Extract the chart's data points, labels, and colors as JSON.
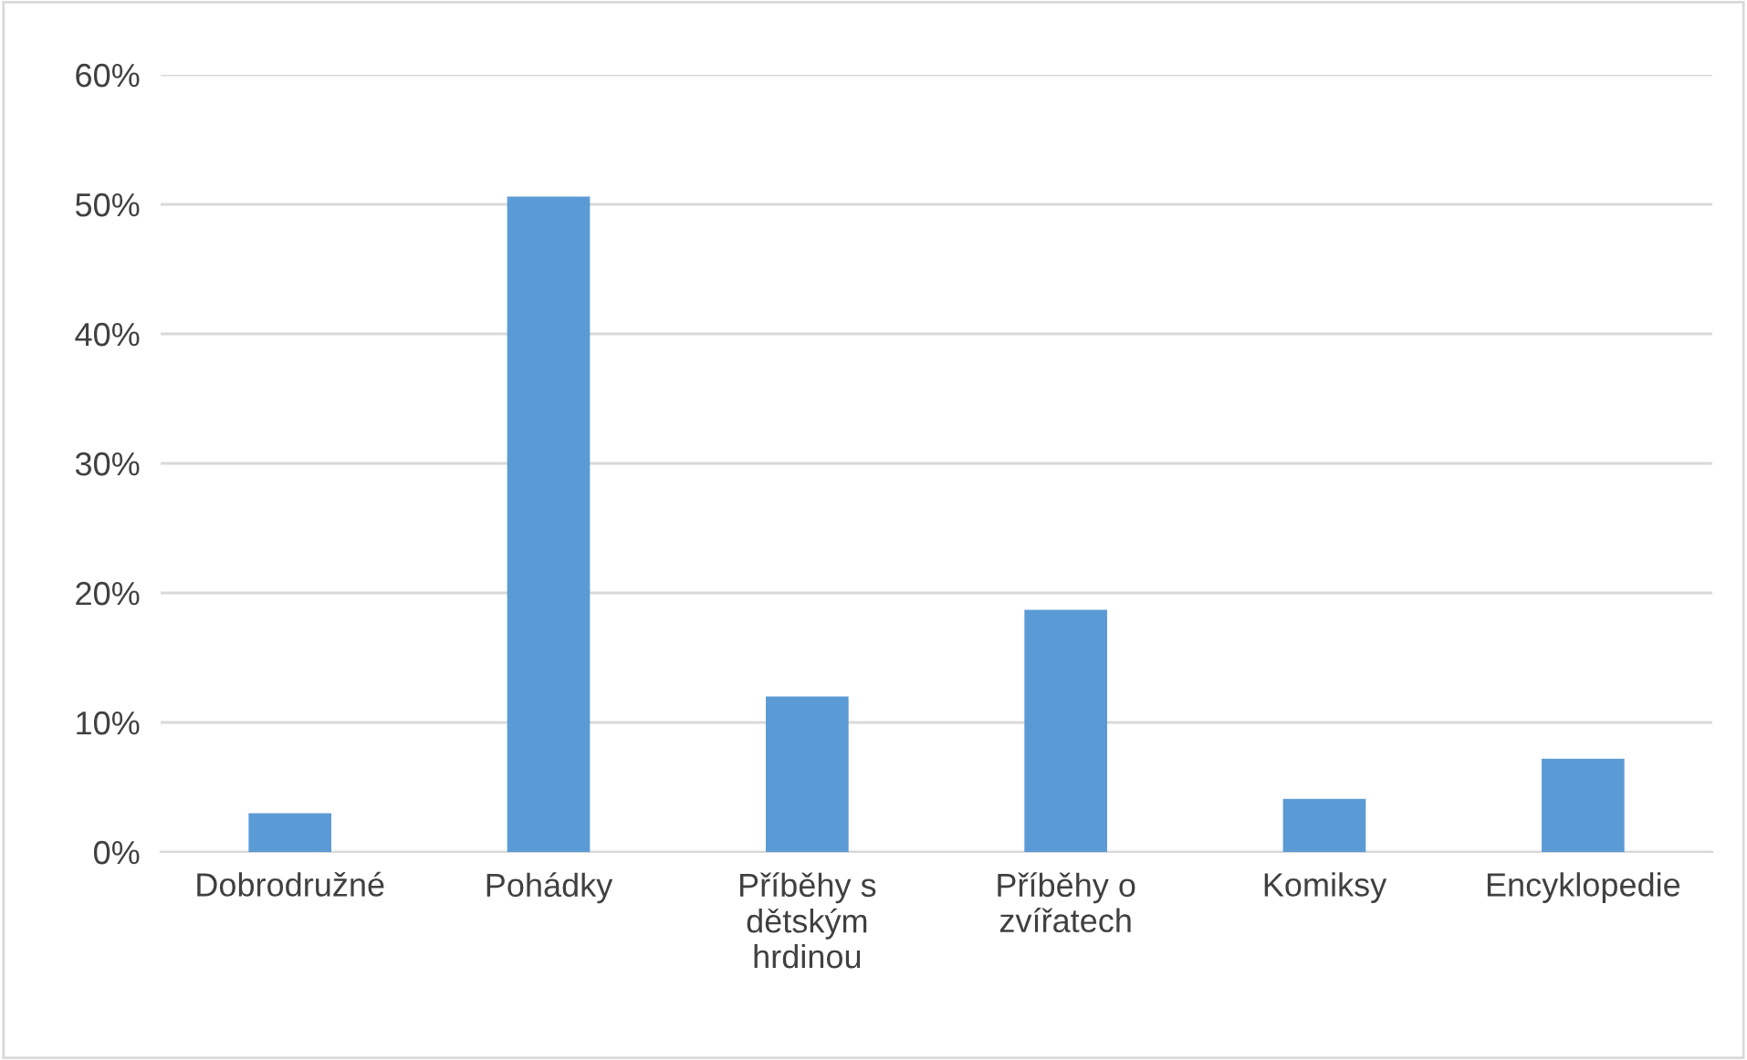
{
  "chart_data": {
    "type": "bar",
    "categories": [
      "Dobrodružné",
      "Pohádky",
      "Příběhy s dětským hrdinou",
      "Příběhy o zvířatech",
      "Komiksy",
      "Encyklopedie"
    ],
    "values": [
      3.0,
      50.6,
      12.0,
      18.7,
      4.1,
      7.2
    ],
    "color": "#5b9bd5",
    "ylim": [
      0,
      60
    ],
    "yticks": [
      {
        "value": 0,
        "label": "0%"
      },
      {
        "value": 10,
        "label": "10%"
      },
      {
        "value": 20,
        "label": "20%"
      },
      {
        "value": 30,
        "label": "30%"
      },
      {
        "value": 40,
        "label": "40%"
      },
      {
        "value": 50,
        "label": "50%"
      },
      {
        "value": 60,
        "label": "60%"
      }
    ],
    "grid": "y"
  }
}
